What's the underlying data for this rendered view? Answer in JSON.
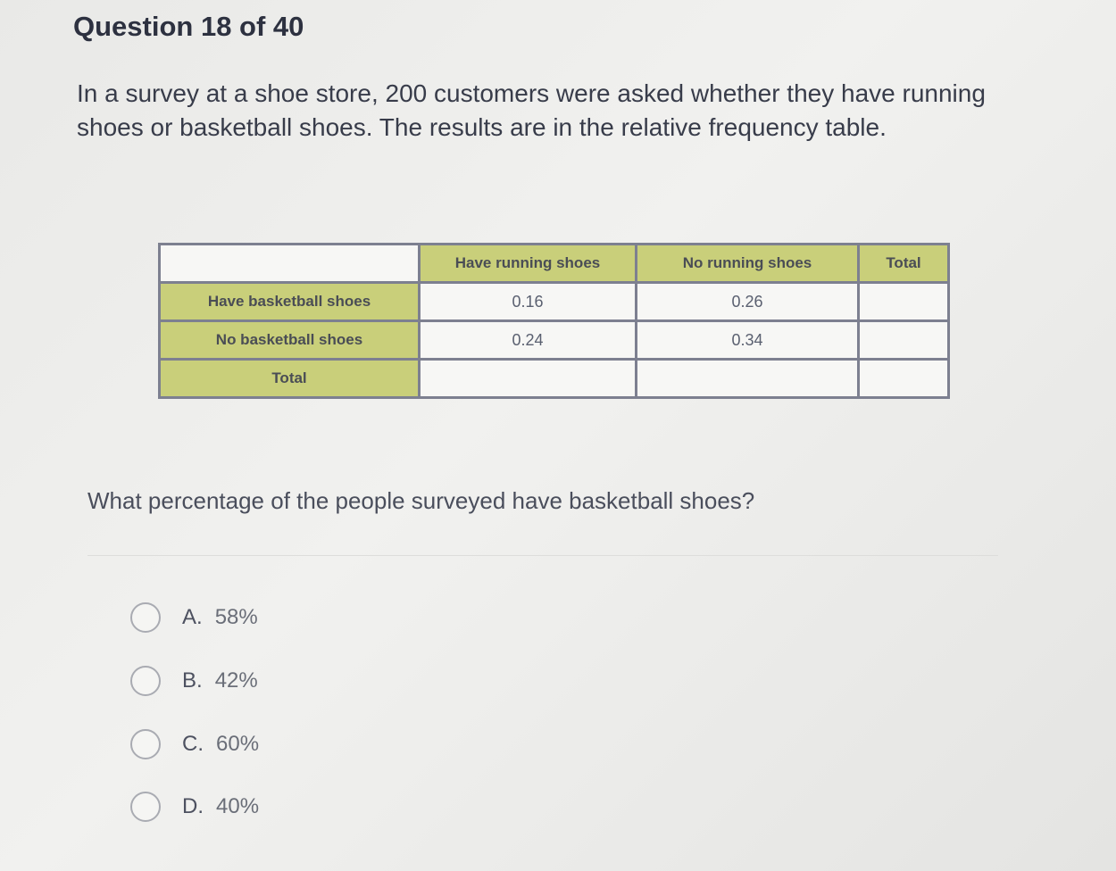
{
  "header": {
    "title": "Question 18 of 40"
  },
  "prompt": "In a survey at a shoe store, 200 customers were asked whether they have running shoes or basketball shoes. The results are in the relative frequency table.",
  "table": {
    "columns": [
      "",
      "Have running shoes",
      "No running shoes",
      "Total"
    ],
    "rows": [
      {
        "label": "Have basketball shoes",
        "cells": [
          "0.16",
          "0.26",
          ""
        ]
      },
      {
        "label": "No basketball shoes",
        "cells": [
          "0.24",
          "0.34",
          ""
        ]
      },
      {
        "label": "Total",
        "cells": [
          "",
          "",
          ""
        ]
      }
    ],
    "header_color": "#c9cf7a"
  },
  "question": "What percentage of the people surveyed have basketball shoes?",
  "options": [
    {
      "letter": "A.",
      "value": "58%"
    },
    {
      "letter": "B.",
      "value": "42%"
    },
    {
      "letter": "C.",
      "value": "60%"
    },
    {
      "letter": "D.",
      "value": "40%"
    }
  ]
}
